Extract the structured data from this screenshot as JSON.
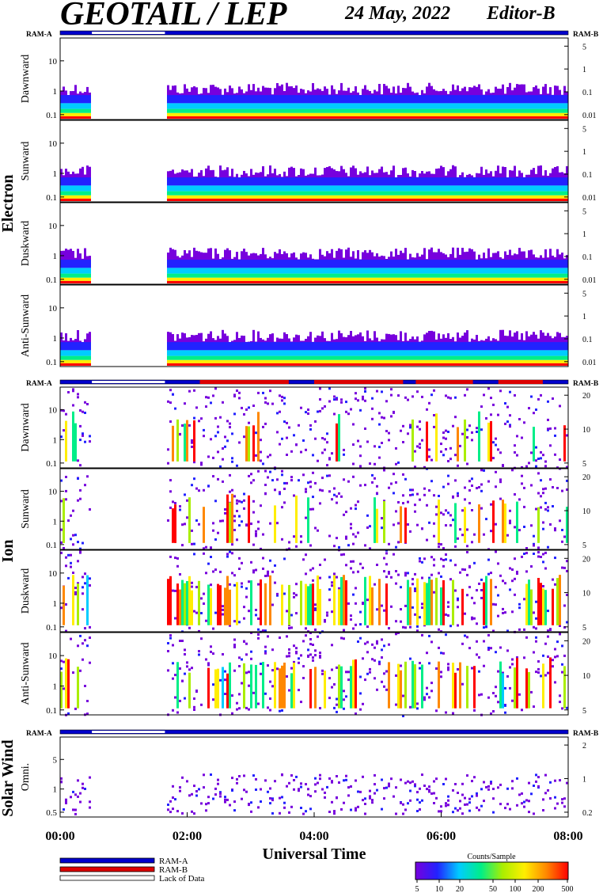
{
  "header": {
    "title": "GEOTAIL / LEP",
    "date": "24 May, 2022",
    "editor": "Editor-B"
  },
  "chart_data": {
    "type": "heatmap",
    "xlabel": "Universal Time",
    "x_ticks": [
      "00:00",
      "02:00",
      "04:00",
      "06:00",
      "08:00"
    ],
    "xlim_hours": [
      0,
      8
    ],
    "data_gaps_hours": [
      [
        0.5,
        1.65
      ]
    ],
    "ram_labels": {
      "left": "RAM-A",
      "right": "RAM-B"
    },
    "groups": [
      {
        "name": "Electron",
        "panels": [
          {
            "label": "Dawnward",
            "left_ticks": [
              "10",
              "1",
              "0.1"
            ],
            "right_ticks": [
              "5",
              "1",
              "0.1",
              "0.01"
            ]
          },
          {
            "label": "Sunward",
            "left_ticks": [
              "10",
              "1",
              "0.1"
            ],
            "right_ticks": [
              "5",
              "1",
              "0.1",
              "0.01"
            ]
          },
          {
            "label": "Duskward",
            "left_ticks": [
              "10",
              "1",
              "0.1"
            ],
            "right_ticks": [
              "5",
              "1",
              "0.1",
              "0.01"
            ]
          },
          {
            "label": "Anti-Sunward",
            "left_ticks": [
              "10",
              "1",
              "0.1"
            ],
            "right_ticks": [
              "5",
              "1",
              "0.1",
              "0.01"
            ]
          }
        ]
      },
      {
        "name": "Ion",
        "panels": [
          {
            "label": "Dawnward",
            "left_ticks": [
              "10",
              "1",
              "0.1"
            ],
            "right_ticks": [
              "20",
              "10",
              "5"
            ]
          },
          {
            "label": "Sunward",
            "left_ticks": [
              "10",
              "1",
              "0.1"
            ],
            "right_ticks": [
              "20",
              "10",
              "5"
            ]
          },
          {
            "label": "Duskward",
            "left_ticks": [
              "10",
              "1",
              "0.1"
            ],
            "right_ticks": [
              "20",
              "10",
              "5"
            ]
          },
          {
            "label": "Anti-Sunward",
            "left_ticks": [
              "10",
              "1",
              "0.1"
            ],
            "right_ticks": [
              "20",
              "10",
              "5"
            ]
          }
        ]
      },
      {
        "name": "Solar Wind",
        "panels": [
          {
            "label": "Omni.",
            "left_ticks": [
              "5",
              "1",
              "0.5"
            ],
            "right_ticks": [
              "2",
              "1",
              "0.2"
            ]
          }
        ]
      }
    ],
    "legend": {
      "items": [
        {
          "label": "RAM-A",
          "color": "#0000cc"
        },
        {
          "label": "RAM-B",
          "color": "#dd0000"
        },
        {
          "label": "Lack of Data",
          "color": "#ffffff"
        }
      ]
    },
    "colorbar": {
      "title": "Counts/Sample",
      "ticks": [
        "5",
        "10",
        "20",
        "50",
        "100",
        "200",
        "500"
      ],
      "stops": [
        "#7700dd",
        "#2222ff",
        "#00ccff",
        "#00ee88",
        "#aaee00",
        "#ffee00",
        "#ff8800",
        "#ff0000"
      ]
    }
  }
}
